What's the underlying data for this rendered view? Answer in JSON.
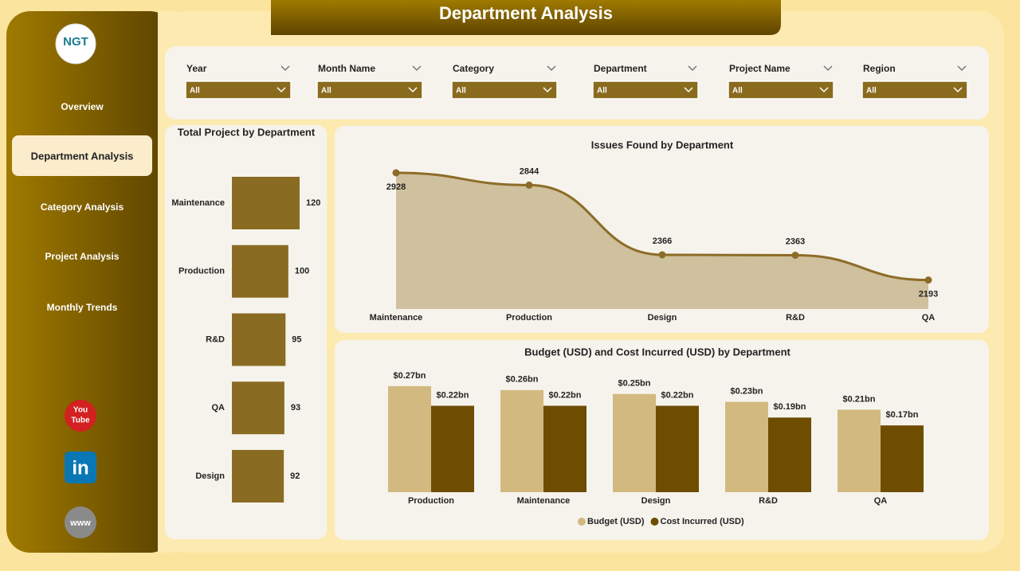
{
  "header": {
    "title": "Department Analysis"
  },
  "sidebar": {
    "logo": "NGT",
    "nav": [
      "Overview",
      "Department Analysis",
      "Category Analysis",
      "Project Analysis",
      "Monthly Trends"
    ],
    "social": {
      "youtube": [
        "You",
        "Tube"
      ],
      "linkedin": "in",
      "web": "www"
    }
  },
  "filters": [
    {
      "label": "Year",
      "value": "All"
    },
    {
      "label": "Month Name",
      "value": "All"
    },
    {
      "label": "Category",
      "value": "All"
    },
    {
      "label": "Department",
      "value": "All"
    },
    {
      "label": "Project Name",
      "value": "All"
    },
    {
      "label": "Region",
      "value": "All"
    }
  ],
  "chart_data": [
    {
      "type": "hbar",
      "title": "Total Project by Department",
      "categories": [
        "Maintenance",
        "Production",
        "R&D",
        "QA",
        "Design"
      ],
      "values": [
        120,
        100,
        95,
        93,
        92
      ],
      "color": "#8a6b22"
    },
    {
      "type": "area",
      "title": "Issues Found by Department",
      "categories": [
        "Maintenance",
        "Production",
        "Design",
        "R&D",
        "QA"
      ],
      "values": [
        2928,
        2844,
        2366,
        2363,
        2193
      ],
      "color": "#8d6c28"
    },
    {
      "type": "bar",
      "title": "Budget (USD) and Cost Incurred (USD) by Department",
      "categories": [
        "Production",
        "Maintenance",
        "Design",
        "R&D",
        "QA"
      ],
      "series": [
        {
          "name": "Budget (USD)",
          "color": "#d2b97f",
          "values": [
            0.27,
            0.26,
            0.25,
            0.23,
            0.21
          ],
          "value_labels": [
            "$0.27bn",
            "$0.26bn",
            "$0.25bn",
            "$0.23bn",
            "$0.21bn"
          ]
        },
        {
          "name": "Cost Incurred (USD)",
          "color": "#6e4d00",
          "values": [
            0.22,
            0.22,
            0.22,
            0.19,
            0.17
          ],
          "value_labels": [
            "$0.22bn",
            "$0.22bn",
            "$0.22bn",
            "$0.19bn",
            "$0.17bn"
          ]
        }
      ],
      "legend": "bottom"
    }
  ]
}
